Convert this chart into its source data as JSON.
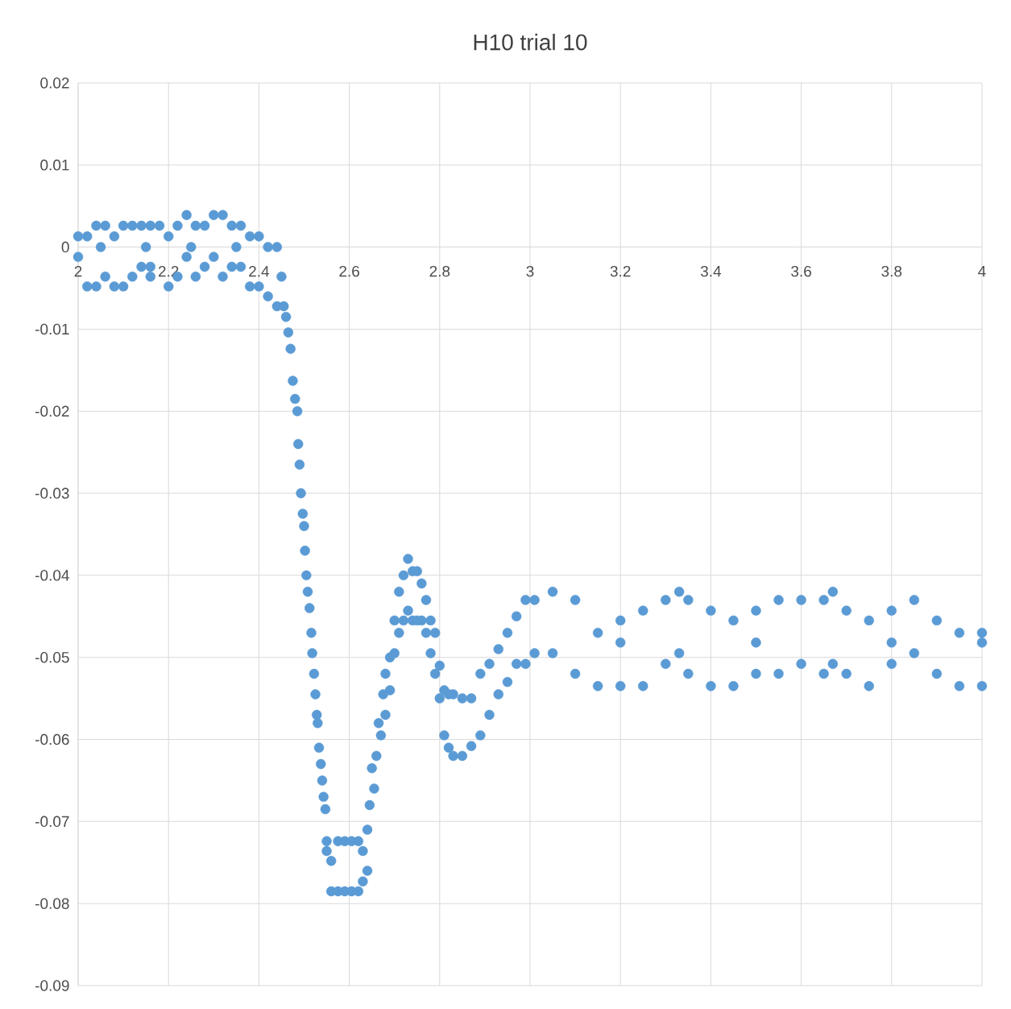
{
  "chart_data": {
    "type": "scatter",
    "title": "H10 trial 10",
    "x": [
      2.0,
      2.0,
      2.02,
      2.02,
      2.04,
      2.04,
      2.05,
      2.06,
      2.06,
      2.08,
      2.08,
      2.1,
      2.1,
      2.12,
      2.12,
      2.14,
      2.14,
      2.15,
      2.16,
      2.16,
      2.18,
      2.16,
      2.2,
      2.2,
      2.22,
      2.22,
      2.24,
      2.24,
      2.25,
      2.26,
      2.26,
      2.28,
      2.28,
      2.3,
      2.3,
      2.32,
      2.32,
      2.34,
      2.34,
      2.35,
      2.36,
      2.36,
      2.38,
      2.38,
      2.4,
      2.4,
      2.42,
      2.42,
      2.44,
      2.44,
      2.45,
      2.455,
      2.46,
      2.465,
      2.47,
      2.475,
      2.48,
      2.485,
      2.487,
      2.49,
      2.493,
      2.497,
      2.5,
      2.502,
      2.505,
      2.508,
      2.512,
      2.516,
      2.518,
      2.522,
      2.525,
      2.528,
      2.53,
      2.533,
      2.537,
      2.54,
      2.543,
      2.547,
      2.55,
      2.55,
      2.56,
      2.56,
      2.575,
      2.575,
      2.59,
      2.59,
      2.605,
      2.605,
      2.62,
      2.62,
      2.63,
      2.63,
      2.64,
      2.64,
      2.645,
      2.65,
      2.655,
      2.66,
      2.665,
      2.67,
      2.675,
      2.68,
      2.68,
      2.69,
      2.69,
      2.7,
      2.7,
      2.71,
      2.71,
      2.72,
      2.72,
      2.73,
      2.73,
      2.74,
      2.74,
      2.75,
      2.75,
      2.76,
      2.76,
      2.77,
      2.77,
      2.78,
      2.78,
      2.79,
      2.79,
      2.8,
      2.8,
      2.81,
      2.81,
      2.82,
      2.82,
      2.83,
      2.83,
      2.85,
      2.85,
      2.87,
      2.87,
      2.89,
      2.89,
      2.91,
      2.91,
      2.93,
      2.93,
      2.95,
      2.95,
      2.97,
      2.97,
      2.99,
      2.99,
      3.01,
      3.01,
      3.05,
      3.05,
      3.1,
      3.1,
      3.15,
      3.15,
      3.2,
      3.2,
      3.2,
      3.25,
      3.25,
      3.3,
      3.3,
      3.33,
      3.33,
      3.35,
      3.35,
      3.4,
      3.4,
      3.45,
      3.45,
      3.5,
      3.5,
      3.5,
      3.55,
      3.55,
      3.6,
      3.6,
      3.65,
      3.65,
      3.67,
      3.67,
      3.7,
      3.7,
      3.75,
      3.75,
      3.8,
      3.8,
      3.8,
      3.85,
      3.85,
      3.9,
      3.9,
      3.95,
      3.95,
      4.0,
      4.0,
      4.0
    ],
    "values": [
      0.0013,
      -0.0012,
      0.0013,
      -0.0048,
      0.0026,
      -0.0048,
      0.0,
      0.0026,
      -0.0036,
      0.0013,
      -0.0048,
      0.0026,
      -0.0048,
      0.0026,
      -0.0036,
      0.0026,
      -0.0024,
      0.0,
      0.0026,
      -0.0036,
      0.0026,
      -0.0024,
      0.0013,
      -0.0048,
      0.0026,
      -0.0036,
      0.0039,
      -0.0012,
      0.0,
      0.0026,
      -0.0036,
      0.0026,
      -0.0024,
      0.0039,
      -0.0012,
      0.0039,
      -0.0036,
      0.0026,
      -0.0024,
      0.0,
      0.0026,
      -0.0024,
      0.0013,
      -0.0048,
      0.0013,
      -0.0048,
      0.0,
      -0.006,
      0.0,
      -0.0072,
      -0.0036,
      -0.0072,
      -0.0085,
      -0.0104,
      -0.0124,
      -0.0163,
      -0.0185,
      -0.02,
      -0.024,
      -0.0265,
      -0.03,
      -0.0325,
      -0.034,
      -0.037,
      -0.04,
      -0.042,
      -0.044,
      -0.047,
      -0.0495,
      -0.052,
      -0.0545,
      -0.057,
      -0.058,
      -0.061,
      -0.063,
      -0.065,
      -0.067,
      -0.0685,
      -0.0724,
      -0.0736,
      -0.0748,
      -0.0785,
      -0.0724,
      -0.0785,
      -0.0724,
      -0.0785,
      -0.0724,
      -0.0785,
      -0.0724,
      -0.0785,
      -0.0736,
      -0.0773,
      -0.071,
      -0.076,
      -0.068,
      -0.0635,
      -0.066,
      -0.062,
      -0.058,
      -0.0595,
      -0.0545,
      -0.052,
      -0.057,
      -0.05,
      -0.054,
      -0.0455,
      -0.0495,
      -0.042,
      -0.047,
      -0.04,
      -0.0455,
      -0.038,
      -0.0443,
      -0.0395,
      -0.0455,
      -0.0395,
      -0.0455,
      -0.041,
      -0.0455,
      -0.043,
      -0.047,
      -0.0455,
      -0.0495,
      -0.047,
      -0.052,
      -0.051,
      -0.055,
      -0.054,
      -0.0595,
      -0.0545,
      -0.061,
      -0.0545,
      -0.062,
      -0.055,
      -0.062,
      -0.055,
      -0.0608,
      -0.052,
      -0.0595,
      -0.0508,
      -0.057,
      -0.049,
      -0.0545,
      -0.047,
      -0.053,
      -0.045,
      -0.0508,
      -0.043,
      -0.0508,
      -0.043,
      -0.0495,
      -0.042,
      -0.0495,
      -0.043,
      -0.052,
      -0.047,
      -0.0535,
      -0.0455,
      -0.0535,
      -0.0482,
      -0.0443,
      -0.0535,
      -0.043,
      -0.0508,
      -0.042,
      -0.0495,
      -0.043,
      -0.052,
      -0.0443,
      -0.0535,
      -0.0455,
      -0.0535,
      -0.0443,
      -0.052,
      -0.0482,
      -0.043,
      -0.052,
      -0.043,
      -0.0508,
      -0.043,
      -0.052,
      -0.042,
      -0.0508,
      -0.0443,
      -0.052,
      -0.0455,
      -0.0535,
      -0.0443,
      -0.0508,
      -0.0482,
      -0.043,
      -0.0495,
      -0.0455,
      -0.052,
      -0.047,
      -0.0535,
      -0.047,
      -0.0535,
      -0.0482
    ],
    "color": "#5b9bd5",
    "marker": "circle",
    "grid": true,
    "xlim": [
      2,
      4
    ],
    "ylim": [
      -0.09,
      0.02
    ],
    "xticks": [
      2,
      2.2,
      2.4,
      2.6,
      2.8,
      3,
      3.2,
      3.4,
      3.6,
      3.8,
      4
    ],
    "yticks": [
      0.02,
      0.01,
      0,
      -0.01,
      -0.02,
      -0.03,
      -0.04,
      -0.05,
      -0.06,
      -0.07,
      -0.08,
      -0.09
    ]
  }
}
